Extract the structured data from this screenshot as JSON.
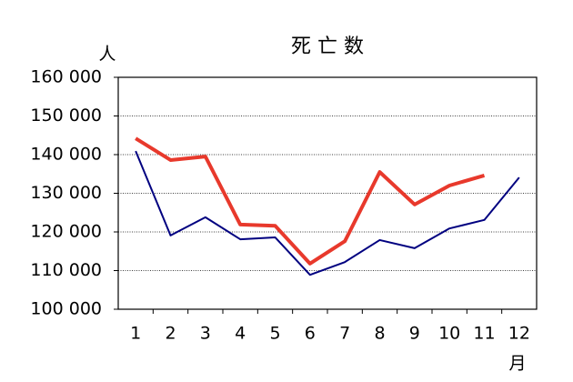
{
  "chart_data": {
    "type": "line",
    "title": "死 亡 数",
    "y_label": "人",
    "x_label": "月",
    "categories": [
      "1",
      "2",
      "3",
      "4",
      "5",
      "6",
      "7",
      "8",
      "9",
      "10",
      "11",
      "12"
    ],
    "series": [
      {
        "color": "#000080",
        "width": 2,
        "values": [
          140900,
          119100,
          123800,
          118100,
          118600,
          108900,
          112200,
          117900,
          115800,
          120900,
          123100,
          134100
        ]
      },
      {
        "color": "#e8392c",
        "width": 4,
        "values": [
          144200,
          138600,
          139500,
          121900,
          121600,
          111800,
          117600,
          135500,
          127100,
          132000,
          134600,
          null
        ]
      }
    ],
    "ylim": [
      100000,
      160000
    ],
    "yticks": [
      {
        "value": 100000,
        "label": "100 000"
      },
      {
        "value": 110000,
        "label": "110 000"
      },
      {
        "value": 120000,
        "label": "120 000"
      },
      {
        "value": 130000,
        "label": "130 000"
      },
      {
        "value": 140000,
        "label": "140 000"
      },
      {
        "value": 150000,
        "label": "150 000"
      },
      {
        "value": 160000,
        "label": "160 000"
      }
    ],
    "grid": true
  }
}
